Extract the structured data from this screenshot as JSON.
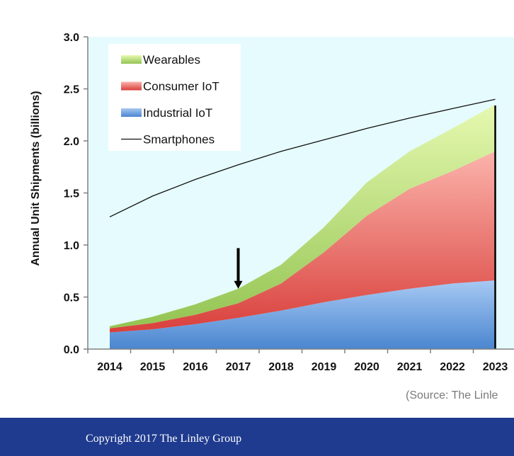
{
  "chart_data": {
    "type": "area",
    "ylabel": "Annual Unit Shipments (billions)",
    "xlabel": "",
    "categories": [
      "2014",
      "2015",
      "2016",
      "2017",
      "2018",
      "2019",
      "2020",
      "2021",
      "2022",
      "2023"
    ],
    "ylim": [
      0,
      3.0
    ],
    "yticks": [
      "0.0",
      "0.5",
      "1.0",
      "1.5",
      "2.0",
      "2.5",
      "3.0"
    ],
    "grid": false,
    "legend_position": "top-left",
    "series": [
      {
        "name": "Industrial IoT",
        "kind": "area",
        "values": [
          0.16,
          0.19,
          0.24,
          0.3,
          0.37,
          0.45,
          0.52,
          0.58,
          0.63,
          0.66
        ],
        "color": "#5b8fd6"
      },
      {
        "name": "Consumer IoT",
        "kind": "area",
        "values": [
          0.04,
          0.06,
          0.09,
          0.14,
          0.26,
          0.48,
          0.76,
          0.96,
          1.08,
          1.24
        ],
        "color": "#e05a5a"
      },
      {
        "name": "Wearables",
        "kind": "area",
        "values": [
          0.02,
          0.06,
          0.1,
          0.14,
          0.18,
          0.24,
          0.32,
          0.36,
          0.41,
          0.45
        ],
        "color": "#a8d36a"
      },
      {
        "name": "Smartphones",
        "kind": "line",
        "values": [
          1.27,
          1.47,
          1.63,
          1.77,
          1.9,
          2.01,
          2.12,
          2.22,
          2.31,
          2.4
        ],
        "color": "#111111"
      }
    ],
    "legend_order": [
      "Wearables",
      "Consumer IoT",
      "Industrial IoT",
      "Smartphones"
    ],
    "annotations": [
      {
        "type": "arrow-down",
        "x": "2017",
        "y_top": 0.97,
        "y_bottom": 0.58
      },
      {
        "type": "vertical-line",
        "x": "2023",
        "y_top": 2.34,
        "y_bottom": 0.0
      }
    ],
    "source": "(Source: The Linle"
  },
  "footer": {
    "copyright": "Copyright 2017 The Linley Group",
    "background_color": "#1f3b8f"
  },
  "colors": {
    "plot_background": "#e6fbfd",
    "axis": "#808080"
  }
}
